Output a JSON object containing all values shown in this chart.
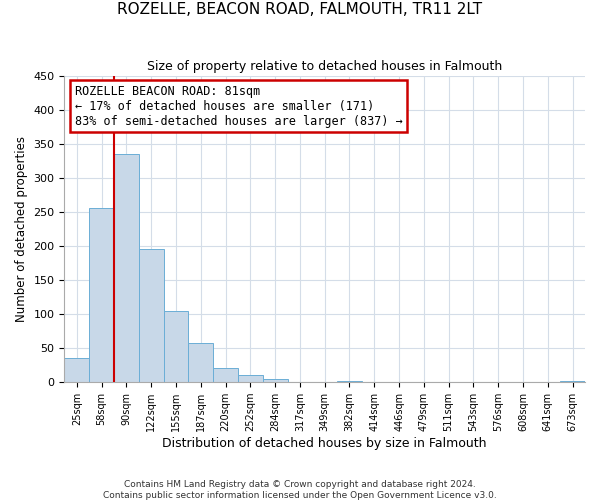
{
  "title": "ROZELLE, BEACON ROAD, FALMOUTH, TR11 2LT",
  "subtitle": "Size of property relative to detached houses in Falmouth",
  "xlabel": "Distribution of detached houses by size in Falmouth",
  "ylabel": "Number of detached properties",
  "bin_labels": [
    "25sqm",
    "58sqm",
    "90sqm",
    "122sqm",
    "155sqm",
    "187sqm",
    "220sqm",
    "252sqm",
    "284sqm",
    "317sqm",
    "349sqm",
    "382sqm",
    "414sqm",
    "446sqm",
    "479sqm",
    "511sqm",
    "543sqm",
    "576sqm",
    "608sqm",
    "641sqm",
    "673sqm"
  ],
  "bar_values": [
    36,
    256,
    335,
    196,
    104,
    57,
    21,
    11,
    5,
    1,
    0,
    2,
    0,
    0,
    0,
    0,
    0,
    0,
    0,
    0,
    2
  ],
  "bar_color": "#c8d8e8",
  "bar_edge_color": "#6baed6",
  "vline_color": "#cc0000",
  "annotation_text": "ROZELLE BEACON ROAD: 81sqm\n← 17% of detached houses are smaller (171)\n83% of semi-detached houses are larger (837) →",
  "annotation_box_color": "#ffffff",
  "annotation_box_edge": "#cc0000",
  "ylim": [
    0,
    450
  ],
  "yticks": [
    0,
    50,
    100,
    150,
    200,
    250,
    300,
    350,
    400,
    450
  ],
  "footer_text": "Contains HM Land Registry data © Crown copyright and database right 2024.\nContains public sector information licensed under the Open Government Licence v3.0.",
  "background_color": "#ffffff",
  "grid_color": "#d4dde8"
}
